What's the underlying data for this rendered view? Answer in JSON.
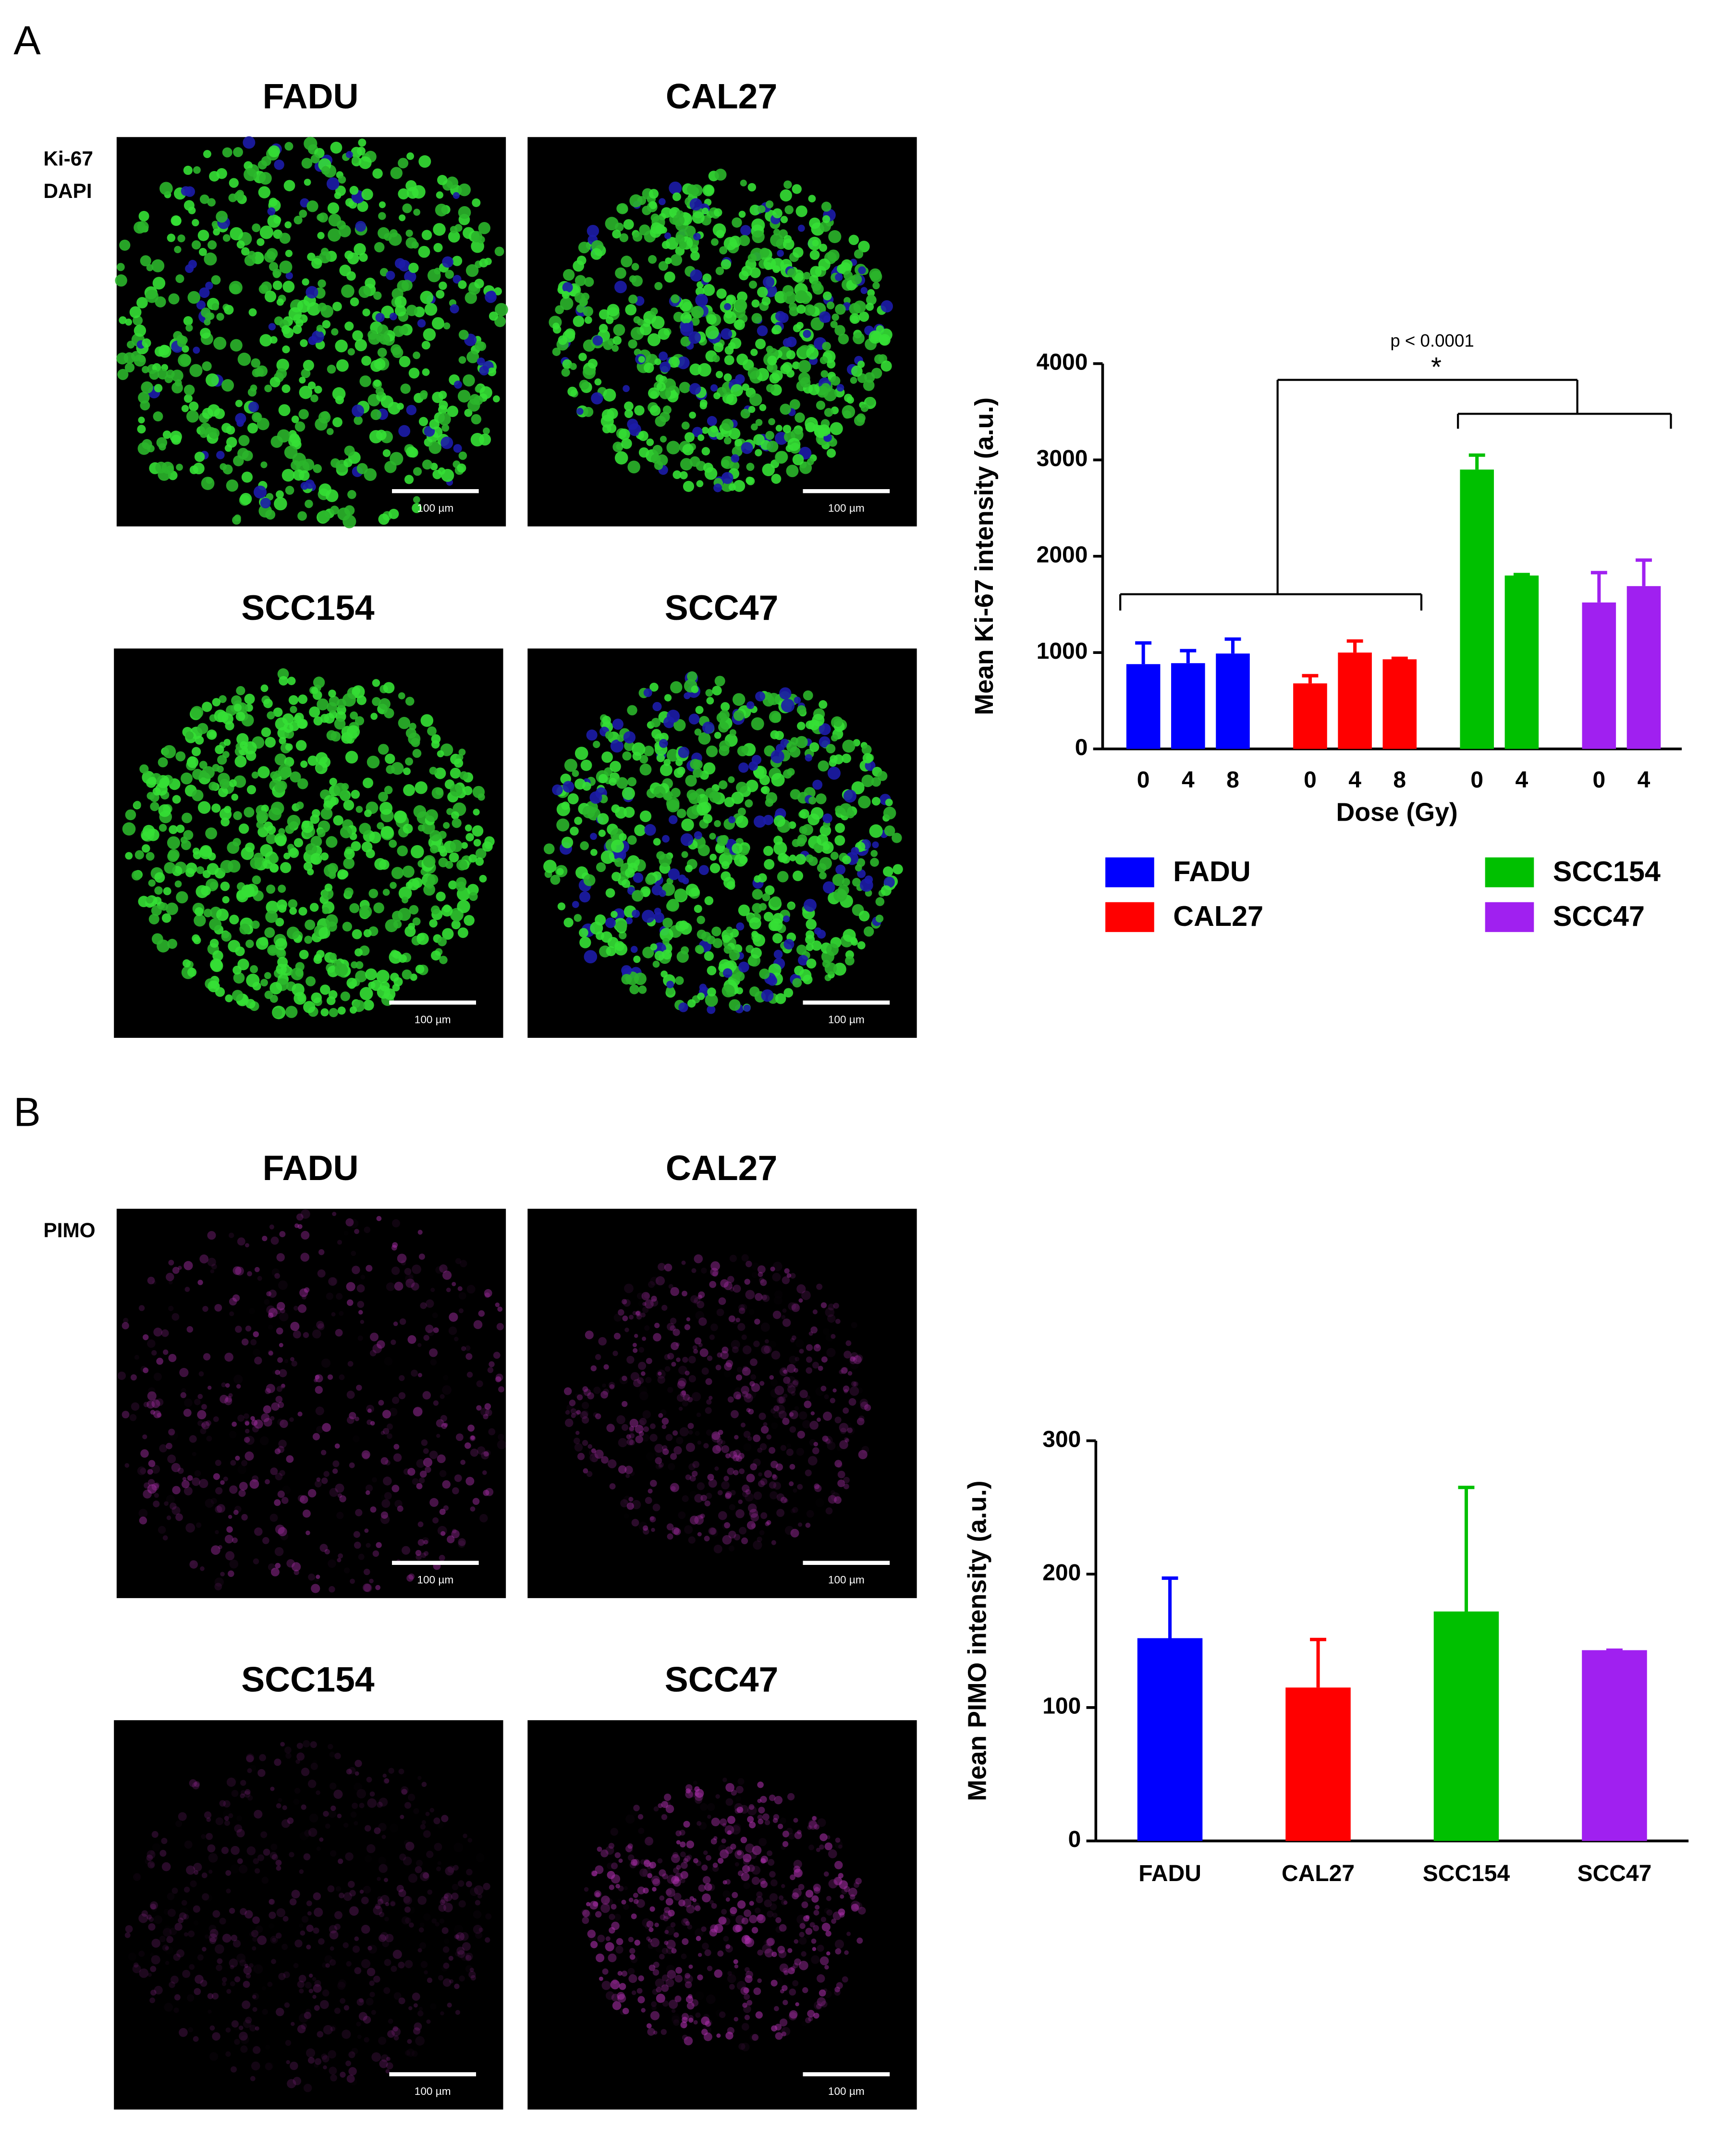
{
  "panels": [
    {
      "letter": "A",
      "stains": [
        {
          "name": "Ki-67",
          "color": "#33cc33"
        },
        {
          "name": "DAPI",
          "color": "#1a1acc"
        }
      ],
      "images": [
        {
          "title": "FADU",
          "scale": "100 µm"
        },
        {
          "title": "CAL27",
          "scale": "100 µm"
        },
        {
          "title": "SCC154",
          "scale": "100 µm"
        },
        {
          "title": "SCC47",
          "scale": "100 µm"
        }
      ]
    },
    {
      "letter": "B",
      "stains": [
        {
          "name": "PIMO",
          "color": "#cc33cc"
        }
      ],
      "images": [
        {
          "title": "FADU",
          "scale": "100 µm"
        },
        {
          "title": "CAL27",
          "scale": "100 µm"
        },
        {
          "title": "SCC154",
          "scale": "100 µm"
        },
        {
          "title": "SCC47",
          "scale": "100 µm"
        }
      ]
    }
  ],
  "chart_data": [
    {
      "type": "bar",
      "y_label": "Mean Ki-67 intensity (a.u.)",
      "x_label": "Dose (Gy)",
      "categories": [
        "0",
        "4",
        "8",
        "0",
        "4",
        "8",
        "0",
        "4",
        "0",
        "4"
      ],
      "series": [
        {
          "name": "FADU",
          "color": "#0000ff",
          "values": [
            880,
            890,
            990,
            null,
            null,
            null,
            null,
            null,
            null,
            null
          ],
          "errors": [
            220,
            130,
            150,
            null,
            null,
            null,
            null,
            null,
            null,
            null
          ]
        },
        {
          "name": "CAL27",
          "color": "#ff0000",
          "values": [
            null,
            null,
            null,
            680,
            1000,
            930,
            null,
            null,
            null,
            null
          ],
          "errors": [
            null,
            null,
            null,
            80,
            120,
            10,
            null,
            null,
            null,
            null
          ]
        },
        {
          "name": "SCC154",
          "color": "#00c000",
          "values": [
            null,
            null,
            null,
            null,
            null,
            null,
            2900,
            1800,
            null,
            null
          ],
          "errors": [
            null,
            null,
            null,
            null,
            null,
            null,
            150,
            10,
            null,
            null
          ]
        },
        {
          "name": "SCC47",
          "color": "#a020f0",
          "values": [
            null,
            null,
            null,
            null,
            null,
            null,
            null,
            null,
            1520,
            1690
          ],
          "errors": [
            null,
            null,
            null,
            null,
            null,
            null,
            null,
            null,
            310,
            270
          ]
        }
      ],
      "annotations": [
        "p < 0.0001",
        "*"
      ],
      "ylim": [
        0,
        4000
      ],
      "yticks": [
        0,
        1000,
        2000,
        3000,
        4000
      ]
    },
    {
      "type": "bar",
      "y_label": "Mean PIMO intensity (a.u.)",
      "categories": [
        "FADU",
        "CAL27",
        "SCC154",
        "SCC47"
      ],
      "values": [
        152,
        115,
        172,
        143
      ],
      "errors": [
        45,
        36,
        93,
        0
      ],
      "colors": [
        "#0000ff",
        "#ff0000",
        "#00c000",
        "#a020f0"
      ],
      "ylim": [
        0,
        300
      ],
      "yticks": [
        0,
        100,
        200,
        300
      ]
    }
  ]
}
